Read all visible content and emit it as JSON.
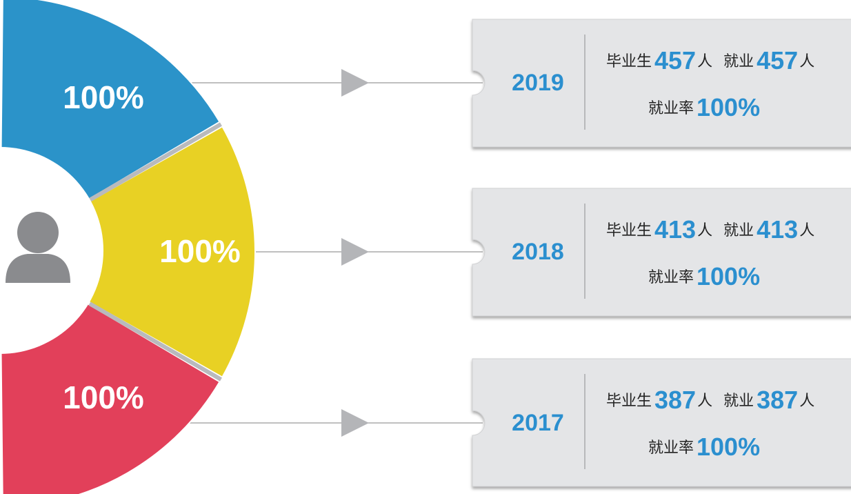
{
  "segments": [
    {
      "label": "100%",
      "color": "#2b93c9"
    },
    {
      "label": "100%",
      "color": "#e8d124"
    },
    {
      "label": "100%",
      "color": "#e2405a"
    }
  ],
  "cards": [
    {
      "year": "2019",
      "graduates_label": "毕业生",
      "graduates": 457,
      "unit": "人",
      "employed_label": "就业",
      "employed": 457,
      "rate_label": "就业率",
      "rate": "100%"
    },
    {
      "year": "2018",
      "graduates_label": "毕业生",
      "graduates": 413,
      "unit": "人",
      "employed_label": "就业",
      "employed": 413,
      "rate_label": "就业率",
      "rate": "100%"
    },
    {
      "year": "2017",
      "graduates_label": "毕业生",
      "graduates": 387,
      "unit": "人",
      "employed_label": "就业",
      "employed": 387,
      "rate_label": "就业率",
      "rate": "100%"
    }
  ]
}
